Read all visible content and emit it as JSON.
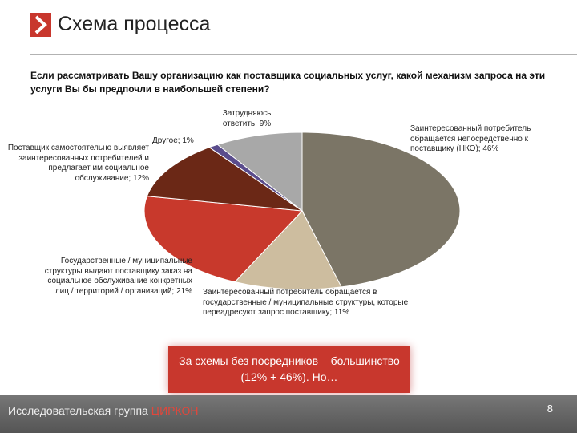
{
  "header": {
    "title": "Схема процесса"
  },
  "question": "Если рассматривать Вашу организацию как поставщика социальных услуг, какой механизм запроса на эти услуги Вы бы предпочли в наибольшей степени?",
  "chart_data": {
    "type": "pie",
    "categories": [
      "Заинтересованный потребитель обращается непосредственно к поставщику (НКО); 46%",
      "Заинтересованный потребитель обращается в государственные / муниципальные структуры, которые переадресуют запрос поставщику; 11%",
      "Государственные / муниципальные структуры выдают поставщику заказ на социальное обслуживание конкретных лиц / территорий / организаций; 21%",
      "Поставщик самостоятельно выявляет заинтересованных потребителей и предлагает им социальное обслуживание; 12%",
      "Другое; 1%",
      "Затрудняюсь ответить; 9%"
    ],
    "values": [
      46,
      11,
      21,
      12,
      1,
      9
    ],
    "colors": [
      "#7b7566",
      "#cdbd9f",
      "#c8392c",
      "#6b2816",
      "#5a4c8c",
      "#a8a8a8"
    ]
  },
  "callout": "За схемы без посредников – большинство (12% + 46%). Но…",
  "footer": {
    "org": "Исследовательская группа",
    "brand": "ЦИРКОН",
    "page": "8"
  }
}
